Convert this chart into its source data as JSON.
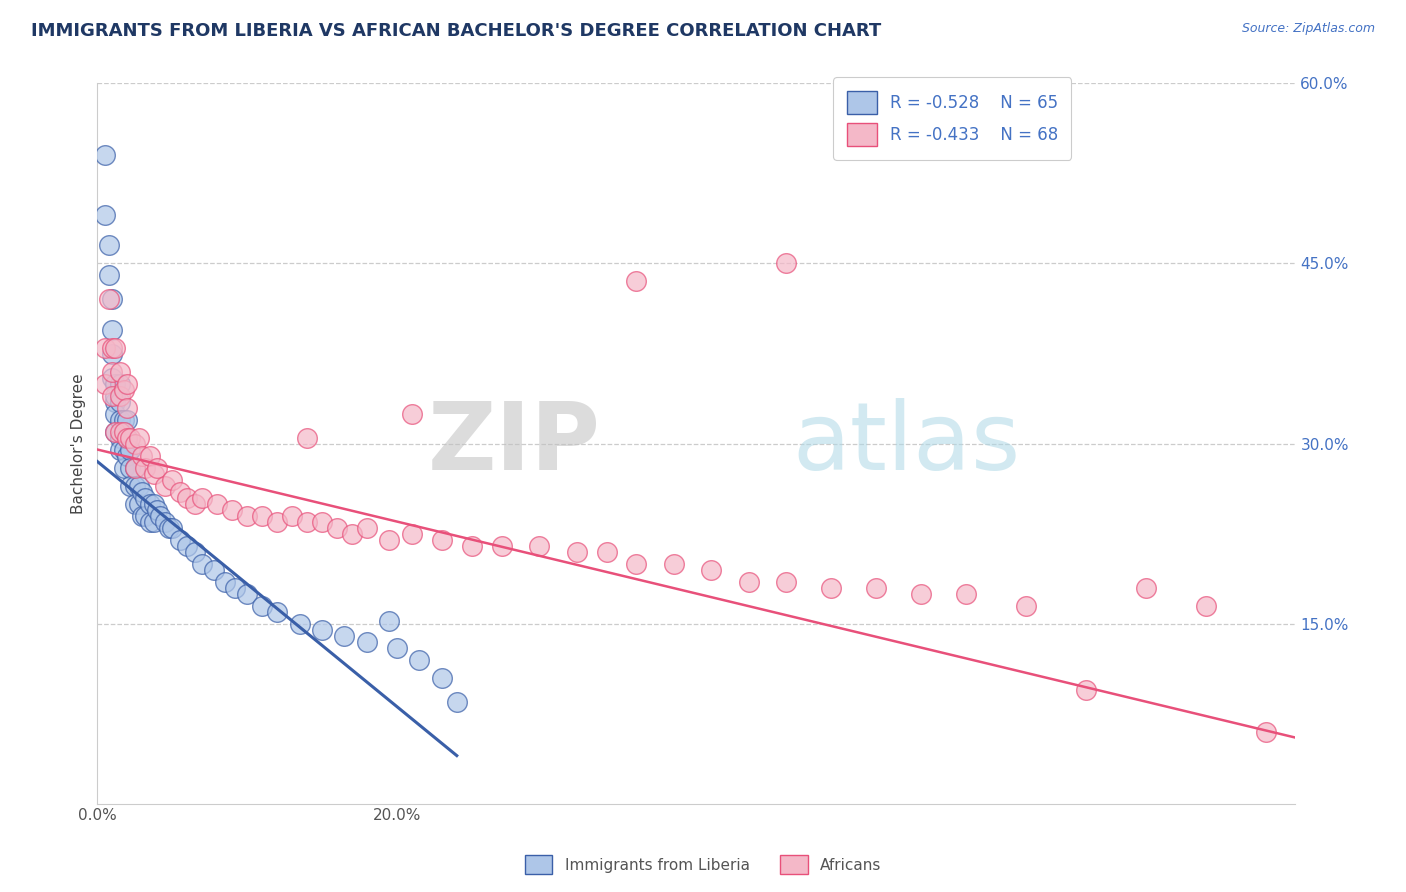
{
  "title": "IMMIGRANTS FROM LIBERIA VS AFRICAN BACHELOR'S DEGREE CORRELATION CHART",
  "source": "Source: ZipAtlas.com",
  "ylabel": "Bachelor's Degree",
  "legend_label1": "Immigrants from Liberia",
  "legend_label2": "Africans",
  "R1": -0.528,
  "N1": 65,
  "R2": -0.433,
  "N2": 68,
  "xlim": [
    0.0,
    0.8
  ],
  "ylim": [
    0.0,
    0.6
  ],
  "xticks": [
    0.0,
    0.1,
    0.2,
    0.3,
    0.4,
    0.5,
    0.6,
    0.7,
    0.8
  ],
  "yticks_right": [
    0.15,
    0.3,
    0.45,
    0.6
  ],
  "color_blue": "#aec6e8",
  "color_pink": "#f4b8c8",
  "line_color_blue": "#3a5fa8",
  "line_color_pink": "#e8507a",
  "title_color": "#1f3864",
  "source_color": "#4472c4",
  "watermark_zip": "ZIP",
  "watermark_atlas": "atlas",
  "blue_x": [
    0.005,
    0.005,
    0.008,
    0.008,
    0.01,
    0.01,
    0.01,
    0.01,
    0.012,
    0.012,
    0.012,
    0.012,
    0.012,
    0.015,
    0.015,
    0.015,
    0.015,
    0.015,
    0.018,
    0.018,
    0.018,
    0.018,
    0.02,
    0.02,
    0.02,
    0.022,
    0.022,
    0.022,
    0.025,
    0.025,
    0.025,
    0.028,
    0.028,
    0.03,
    0.03,
    0.032,
    0.032,
    0.035,
    0.035,
    0.038,
    0.038,
    0.04,
    0.042,
    0.045,
    0.048,
    0.05,
    0.055,
    0.06,
    0.065,
    0.07,
    0.078,
    0.085,
    0.092,
    0.1,
    0.11,
    0.12,
    0.135,
    0.15,
    0.165,
    0.18,
    0.2,
    0.215,
    0.23,
    0.24,
    0.195
  ],
  "blue_y": [
    0.54,
    0.49,
    0.465,
    0.44,
    0.42,
    0.395,
    0.375,
    0.355,
    0.35,
    0.335,
    0.34,
    0.325,
    0.31,
    0.35,
    0.335,
    0.32,
    0.305,
    0.295,
    0.32,
    0.31,
    0.295,
    0.28,
    0.32,
    0.305,
    0.29,
    0.295,
    0.28,
    0.265,
    0.28,
    0.265,
    0.25,
    0.265,
    0.25,
    0.26,
    0.24,
    0.255,
    0.24,
    0.25,
    0.235,
    0.25,
    0.235,
    0.245,
    0.24,
    0.235,
    0.23,
    0.23,
    0.22,
    0.215,
    0.21,
    0.2,
    0.195,
    0.185,
    0.18,
    0.175,
    0.165,
    0.16,
    0.15,
    0.145,
    0.14,
    0.135,
    0.13,
    0.12,
    0.105,
    0.085,
    0.152
  ],
  "pink_x": [
    0.005,
    0.005,
    0.008,
    0.01,
    0.01,
    0.01,
    0.012,
    0.012,
    0.015,
    0.015,
    0.015,
    0.018,
    0.018,
    0.02,
    0.02,
    0.02,
    0.022,
    0.025,
    0.025,
    0.028,
    0.03,
    0.032,
    0.035,
    0.038,
    0.04,
    0.045,
    0.05,
    0.055,
    0.06,
    0.065,
    0.07,
    0.08,
    0.09,
    0.1,
    0.11,
    0.12,
    0.13,
    0.14,
    0.15,
    0.16,
    0.17,
    0.18,
    0.195,
    0.21,
    0.23,
    0.25,
    0.27,
    0.295,
    0.32,
    0.34,
    0.36,
    0.385,
    0.41,
    0.435,
    0.46,
    0.49,
    0.52,
    0.55,
    0.58,
    0.62,
    0.66,
    0.7,
    0.74,
    0.78,
    0.46,
    0.36,
    0.21,
    0.14
  ],
  "pink_y": [
    0.38,
    0.35,
    0.42,
    0.38,
    0.36,
    0.34,
    0.38,
    0.31,
    0.36,
    0.34,
    0.31,
    0.345,
    0.31,
    0.35,
    0.33,
    0.305,
    0.305,
    0.3,
    0.28,
    0.305,
    0.29,
    0.28,
    0.29,
    0.275,
    0.28,
    0.265,
    0.27,
    0.26,
    0.255,
    0.25,
    0.255,
    0.25,
    0.245,
    0.24,
    0.24,
    0.235,
    0.24,
    0.235,
    0.235,
    0.23,
    0.225,
    0.23,
    0.22,
    0.225,
    0.22,
    0.215,
    0.215,
    0.215,
    0.21,
    0.21,
    0.2,
    0.2,
    0.195,
    0.185,
    0.185,
    0.18,
    0.18,
    0.175,
    0.175,
    0.165,
    0.095,
    0.18,
    0.165,
    0.06,
    0.45,
    0.435,
    0.325,
    0.305
  ]
}
